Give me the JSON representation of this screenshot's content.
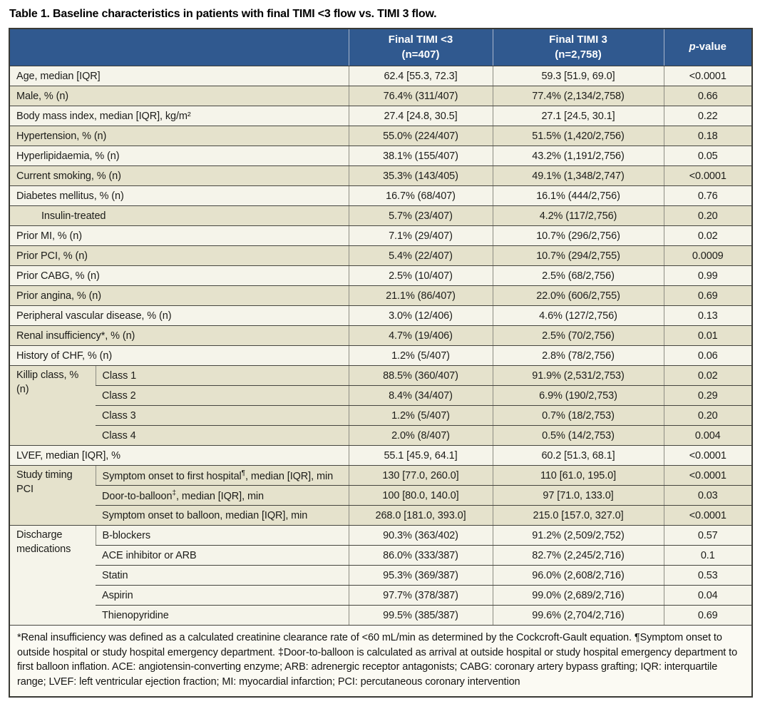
{
  "title": "Table 1. Baseline characteristics in patients with final TIMI <3 flow vs. TIMI 3 flow.",
  "colors": {
    "header_bg": "#30598f",
    "header_text": "#ffffff",
    "row_plain": "#f5f4ea",
    "row_shaded": "#e5e2cc",
    "border_dark": "#45453f",
    "border_gray": "#8d8d83"
  },
  "table": {
    "header": {
      "timi_lt3": {
        "line1": "Final TIMI <3",
        "line2": "(n=407)"
      },
      "timi_3": {
        "line1": "Final TIMI 3",
        "line2": "(n=2,758)"
      },
      "p": {
        "italic": "p",
        "rest": "-value"
      }
    },
    "rows": [
      {
        "label": "Age, median [IQR]",
        "v1": "62.4 [55.3, 72.3]",
        "v2": "59.3 [51.9, 69.0]",
        "p": "<0.0001",
        "shade": "plain"
      },
      {
        "label": "Male, % (n)",
        "v1": "76.4% (311/407)",
        "v2": "77.4% (2,134/2,758)",
        "p": "0.66",
        "shade": "alt"
      },
      {
        "label": "Body mass index, median [IQR], kg/m²",
        "v1": "27.4 [24.8, 30.5]",
        "v2": "27.1 [24.5, 30.1]",
        "p": "0.22",
        "shade": "plain"
      },
      {
        "label": "Hypertension, % (n)",
        "v1": "55.0% (224/407)",
        "v2": "51.5% (1,420/2,756)",
        "p": "0.18",
        "shade": "alt"
      },
      {
        "label": "Hyperlipidaemia, % (n)",
        "v1": "38.1% (155/407)",
        "v2": "43.2% (1,191/2,756)",
        "p": "0.05",
        "shade": "plain"
      },
      {
        "label": "Current smoking, % (n)",
        "v1": "35.3% (143/405)",
        "v2": "49.1% (1,348/2,747)",
        "p": "<0.0001",
        "shade": "alt"
      },
      {
        "label": "Diabetes mellitus, % (n)",
        "v1": "16.7% (68/407)",
        "v2": "16.1% (444/2,756)",
        "p": "0.76",
        "shade": "plain"
      },
      {
        "label": "Insulin-treated",
        "indent": true,
        "v1": "5.7% (23/407)",
        "v2": "4.2% (117/2,756)",
        "p": "0.20",
        "shade": "alt"
      },
      {
        "label": "Prior MI, % (n)",
        "v1": "7.1% (29/407)",
        "v2": "10.7% (296/2,756)",
        "p": "0.02",
        "shade": "plain"
      },
      {
        "label": "Prior PCI, % (n)",
        "v1": "5.4% (22/407)",
        "v2": "10.7% (294/2,755)",
        "p": "0.0009",
        "shade": "alt"
      },
      {
        "label": "Prior CABG, % (n)",
        "v1": "2.5% (10/407)",
        "v2": "2.5% (68/2,756)",
        "p": "0.99",
        "shade": "plain"
      },
      {
        "label": "Prior angina, % (n)",
        "v1": "21.1% (86/407)",
        "v2": "22.0% (606/2,755)",
        "p": "0.69",
        "shade": "alt"
      },
      {
        "label": "Peripheral vascular disease, % (n)",
        "v1": "3.0% (12/406)",
        "v2": "4.6% (127/2,756)",
        "p": "0.13",
        "shade": "plain"
      },
      {
        "label": "Renal insufficiency*, % (n)",
        "v1": "4.7% (19/406)",
        "v2": "2.5% (70/2,756)",
        "p": "0.01",
        "shade": "alt"
      },
      {
        "label": "History of CHF, % (n)",
        "v1": "1.2% (5/407)",
        "v2": "2.8% (78/2,756)",
        "p": "0.06",
        "shade": "plain"
      },
      {
        "group": {
          "label": "Killip class, % (n)",
          "span": 4
        },
        "sub": true,
        "label": "Class 1",
        "v1": "88.5% (360/407)",
        "v2": "91.9% (2,531/2,753)",
        "p": "0.02",
        "shade": "alt"
      },
      {
        "sub": true,
        "label": "Class 2",
        "v1": "8.4% (34/407)",
        "v2": "6.9% (190/2,753)",
        "p": "0.29",
        "shade": "alt"
      },
      {
        "sub": true,
        "label": "Class 3",
        "v1": "1.2% (5/407)",
        "v2": "0.7% (18/2,753)",
        "p": "0.20",
        "shade": "alt"
      },
      {
        "sub": true,
        "label": "Class 4",
        "v1": "2.0% (8/407)",
        "v2": "0.5% (14/2,753)",
        "p": "0.004",
        "shade": "alt"
      },
      {
        "label": "LVEF, median [IQR], %",
        "v1": "55.1 [45.9, 64.1]",
        "v2": "60.2 [51.3, 68.1]",
        "p": "<0.0001",
        "shade": "plain"
      },
      {
        "group": {
          "label": "Study timing PCI",
          "span": 3
        },
        "sub": true,
        "label": "Symptom onset to first hospital",
        "sup": "¶",
        "rest": ", median [IQR], min",
        "v1": "130 [77.0, 260.0]",
        "v2": "110 [61.0, 195.0]",
        "p": "<0.0001",
        "shade": "alt"
      },
      {
        "sub": true,
        "label": "Door-to-balloon",
        "sup": "‡",
        "rest": ", median [IQR], min",
        "v1": "100 [80.0, 140.0]",
        "v2": "97 [71.0, 133.0]",
        "p": "0.03",
        "shade": "alt"
      },
      {
        "sub": true,
        "label": "Symptom onset to balloon, median [IQR], min",
        "v1": "268.0 [181.0, 393.0]",
        "v2": "215.0 [157.0, 327.0]",
        "p": "<0.0001",
        "shade": "alt"
      },
      {
        "group": {
          "label": "Discharge medications",
          "span": 5
        },
        "sub": true,
        "label": "B-blockers",
        "v1": "90.3% (363/402)",
        "v2": "91.2% (2,509/2,752)",
        "p": "0.57",
        "shade": "plain"
      },
      {
        "sub": true,
        "label": "ACE inhibitor or ARB",
        "v1": "86.0% (333/387)",
        "v2": "82.7% (2,245/2,716)",
        "p": "0.1",
        "shade": "plain"
      },
      {
        "sub": true,
        "label": "Statin",
        "v1": "95.3% (369/387)",
        "v2": "96.0% (2,608/2,716)",
        "p": "0.53",
        "shade": "plain"
      },
      {
        "sub": true,
        "label": "Aspirin",
        "v1": "97.7% (378/387)",
        "v2": "99.0% (2,689/2,716)",
        "p": "0.04",
        "shade": "plain"
      },
      {
        "sub": true,
        "label": "Thienopyridine",
        "v1": "99.5% (385/387)",
        "v2": "99.6% (2,704/2,716)",
        "p": "0.69",
        "shade": "plain"
      }
    ]
  },
  "footnote": "*Renal insufficiency was defined as a calculated creatinine clearance rate of <60 mL/min as determined by the Cockcroft-Gault equation. ¶Symptom onset to outside hospital or study hospital emergency department. ‡Door-to-balloon is calculated as arrival at outside hospital or study hospital emergency department to first balloon inflation. ACE: angiotensin-converting enzyme; ARB: adrenergic receptor antagonists; CABG: coronary artery bypass grafting; IQR: interquartile range; LVEF: left ventricular ejection fraction; MI: myocardial infarction; PCI: percutaneous coronary intervention"
}
